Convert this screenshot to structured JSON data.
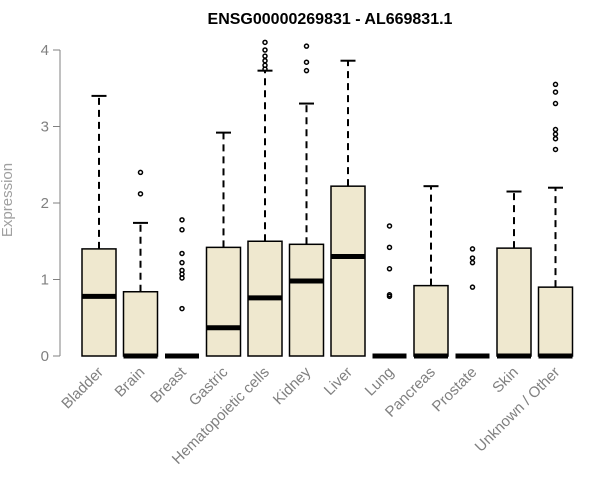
{
  "chart_data": {
    "type": "boxplot",
    "title": "ENSG00000269831 - AL669831.1",
    "xlabel": "",
    "ylabel": "Expression",
    "ylim": [
      0,
      4.1
    ],
    "yticks": [
      0,
      1,
      2,
      3,
      4
    ],
    "grid": false,
    "legend": "none",
    "colors": {
      "box_fill": "#efe8cf",
      "box_stroke": "#000000",
      "axis": "#808080",
      "outlier": "#000000"
    },
    "categories": [
      "Bladder",
      "Brain",
      "Breast",
      "Gastric",
      "Hematopoietic cells",
      "Kidney",
      "Liver",
      "Lung",
      "Pancreas",
      "Prostate",
      "Skin",
      "Unknown / Other"
    ],
    "boxes": [
      {
        "q1": 0,
        "median": 0.78,
        "q3": 1.4,
        "whisker_low": 0,
        "whisker_high": 3.4,
        "outliers": []
      },
      {
        "q1": 0,
        "median": 0,
        "q3": 0.84,
        "whisker_low": 0,
        "whisker_high": 1.74,
        "outliers": [
          2.12,
          2.4
        ]
      },
      {
        "q1": 0,
        "median": 0,
        "q3": 0,
        "whisker_low": 0,
        "whisker_high": 0,
        "outliers": [
          0.62,
          1.02,
          1.07,
          1.12,
          1.22,
          1.34,
          1.65,
          1.78
        ]
      },
      {
        "q1": 0,
        "median": 0.37,
        "q3": 1.42,
        "whisker_low": 0,
        "whisker_high": 2.92,
        "outliers": []
      },
      {
        "q1": 0,
        "median": 0.76,
        "q3": 1.5,
        "whisker_low": 0,
        "whisker_high": 3.73,
        "outliers": [
          3.75,
          3.8,
          3.86,
          3.92,
          4.0,
          4.1
        ]
      },
      {
        "q1": 0,
        "median": 0.98,
        "q3": 1.46,
        "whisker_low": 0,
        "whisker_high": 3.3,
        "outliers": [
          3.73,
          3.84,
          4.05
        ]
      },
      {
        "q1": 0,
        "median": 1.3,
        "q3": 2.22,
        "whisker_low": 0,
        "whisker_high": 3.86,
        "outliers": []
      },
      {
        "q1": 0,
        "median": 0,
        "q3": 0,
        "whisker_low": 0,
        "whisker_high": 0,
        "outliers": [
          0.78,
          0.8,
          1.14,
          1.42,
          1.7
        ]
      },
      {
        "q1": 0,
        "median": 0,
        "q3": 0.92,
        "whisker_low": 0,
        "whisker_high": 2.22,
        "outliers": []
      },
      {
        "q1": 0,
        "median": 0,
        "q3": 0,
        "whisker_low": 0,
        "whisker_high": 0,
        "outliers": [
          0.9,
          1.22,
          1.28,
          1.4
        ]
      },
      {
        "q1": 0,
        "median": 0,
        "q3": 1.41,
        "whisker_low": 0,
        "whisker_high": 2.15,
        "outliers": []
      },
      {
        "q1": 0,
        "median": 0,
        "q3": 0.9,
        "whisker_low": 0,
        "whisker_high": 2.2,
        "outliers": [
          2.7,
          2.84,
          2.9,
          2.96,
          3.3,
          3.45,
          3.55
        ]
      }
    ]
  }
}
